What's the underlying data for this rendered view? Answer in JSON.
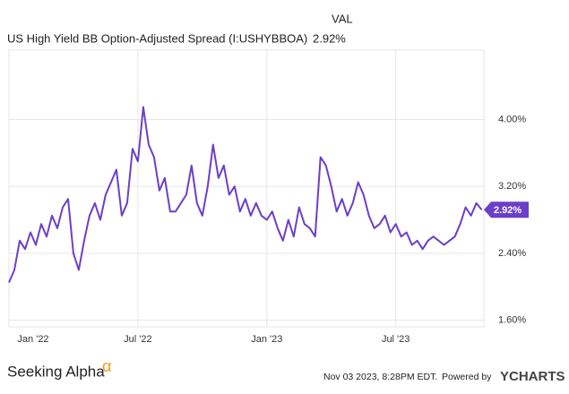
{
  "chart_data": {
    "type": "line",
    "legend": {
      "header": "VAL",
      "value": "2.92%"
    },
    "series": [
      {
        "name": "US High Yield BB Option-Adjusted Spread (I:USHYBBOA)",
        "color": "#6c3fc9",
        "values": [
          2.05,
          2.2,
          2.55,
          2.45,
          2.65,
          2.5,
          2.75,
          2.6,
          2.85,
          2.7,
          2.95,
          3.05,
          2.4,
          2.2,
          2.55,
          2.85,
          3.0,
          2.8,
          3.1,
          3.25,
          3.4,
          2.85,
          3.0,
          3.65,
          3.5,
          4.15,
          3.7,
          3.55,
          3.15,
          3.3,
          2.9,
          2.9,
          3.0,
          3.1,
          3.45,
          3.0,
          2.85,
          3.2,
          3.7,
          3.3,
          3.45,
          3.1,
          3.2,
          2.9,
          3.05,
          2.85,
          3.0,
          2.85,
          2.8,
          2.9,
          2.7,
          2.55,
          2.8,
          2.6,
          2.95,
          2.75,
          2.7,
          2.6,
          3.55,
          3.45,
          3.2,
          2.9,
          3.05,
          2.85,
          3.0,
          3.25,
          3.1,
          2.85,
          2.7,
          2.75,
          2.85,
          2.65,
          2.75,
          2.6,
          2.65,
          2.5,
          2.55,
          2.45,
          2.55,
          2.6,
          2.55,
          2.5,
          2.55,
          2.6,
          2.75,
          2.95,
          2.85,
          3.0,
          2.92
        ]
      }
    ],
    "x": [
      0,
      0.25,
      0.5,
      0.75,
      1,
      1.25,
      1.5,
      1.75,
      2,
      2.25,
      2.5,
      2.75,
      3,
      3.25,
      3.5,
      3.75,
      4,
      4.25,
      4.5,
      4.75,
      5,
      5.25,
      5.5,
      5.75,
      6,
      6.25,
      6.5,
      6.75,
      7,
      7.25,
      7.5,
      7.75,
      8,
      8.25,
      8.5,
      8.75,
      9,
      9.25,
      9.5,
      9.75,
      10,
      10.25,
      10.5,
      10.75,
      11,
      11.25,
      11.5,
      11.75,
      12,
      12.25,
      12.5,
      12.75,
      13,
      13.25,
      13.5,
      13.75,
      14,
      14.25,
      14.5,
      14.75,
      15,
      15.25,
      15.5,
      15.75,
      16,
      16.25,
      16.5,
      16.75,
      17,
      17.25,
      17.5,
      17.75,
      18,
      18.25,
      18.5,
      18.75,
      19,
      19.25,
      19.5,
      19.75,
      20,
      20.25,
      20.5,
      20.75,
      21,
      21.25,
      21.5,
      21.75,
      22
    ],
    "xlim": [
      0,
      22.1
    ],
    "xticks": [
      {
        "value": 0,
        "label": "Jan '22"
      },
      {
        "value": 6,
        "label": "Jul '22"
      },
      {
        "value": 12,
        "label": "Jan '23"
      },
      {
        "value": 18,
        "label": "Jul '23"
      }
    ],
    "ylim": [
      1.52,
      4.83
    ],
    "yticks": [
      {
        "value": 1.6,
        "label": "1.60%"
      },
      {
        "value": 2.4,
        "label": "2.40%"
      },
      {
        "value": 3.2,
        "label": "3.20%"
      },
      {
        "value": 4.0,
        "label": "4.00%"
      }
    ],
    "grid": true
  },
  "footer": {
    "brand": "Seeking Alpha",
    "brand_symbol": "α",
    "timestamp": "Nov 03 2023, 8:28PM EDT.",
    "powered": "Powered by",
    "provider": "YCHARTS"
  }
}
